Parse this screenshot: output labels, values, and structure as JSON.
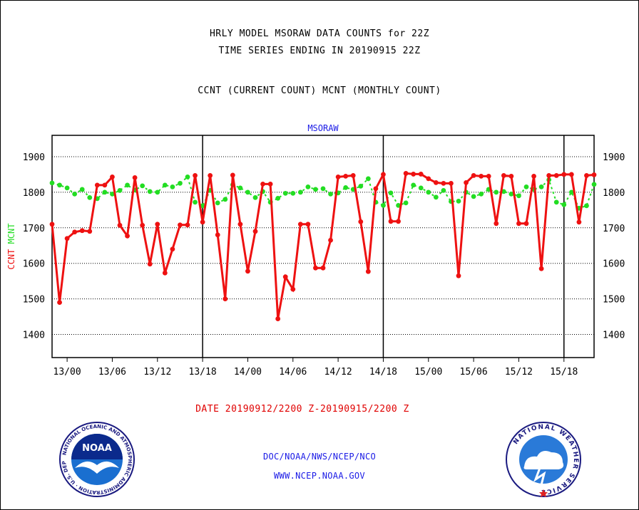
{
  "header": {
    "line1": "HRLY MODEL MSORAW DATA COUNTS for 22Z",
    "line2": "TIME SERIES ENDING IN 20190915 22Z",
    "line3": "CCNT (CURRENT COUNT) MCNT (MONTHLY COUNT)"
  },
  "footer": {
    "date_range": "DATE 20190912/2200 Z-20190915/2200 Z",
    "org": "DOC/NOAA/NWS/NCEP/NCO",
    "url": "WWW.NCEP.NOAA.GOV"
  },
  "logos": {
    "noaa_text": "NOAA",
    "noaa_ring": "NATIONAL OCEANIC AND ATMOSPHERIC ADMINISTRATION · U.S. DEPARTMENT OF COMMERCE ·",
    "nws_ring": "NATIONAL WEATHER SERVICE"
  },
  "colors": {
    "ccnt": "#ee1111",
    "mcnt": "#22dd22",
    "title": "#1a1ae6",
    "axis": "#000000"
  },
  "chart_data": {
    "type": "line",
    "title": "MSORAW",
    "ylabel_ccnt": "CCNT",
    "ylabel_mcnt": "MCNT",
    "ylim": [
      1335,
      1960
    ],
    "yticks": [
      1400,
      1500,
      1600,
      1700,
      1800,
      1900
    ],
    "xlabels": [
      "13/00",
      "13/06",
      "13/12",
      "13/18",
      "14/00",
      "14/06",
      "14/12",
      "14/18",
      "15/00",
      "15/06",
      "15/12",
      "15/18"
    ],
    "x_start": "12/22Z",
    "x_end": "15/22Z",
    "day_boundaries": [
      "13/18",
      "14/18",
      "15/18"
    ],
    "grid": true,
    "series": [
      {
        "name": "CCNT",
        "values": [
          1710,
          1490,
          1670,
          1688,
          1692,
          1690,
          1820,
          1820,
          1843,
          1707,
          1677,
          1841,
          1707,
          1598,
          1710,
          1573,
          1640,
          1708,
          1708,
          1847,
          1716,
          1847,
          1680,
          1500,
          1848,
          1710,
          1578,
          1690,
          1823,
          1823,
          1444,
          1562,
          1527,
          1710,
          1710,
          1587,
          1587,
          1665,
          1843,
          1845,
          1847,
          1717,
          1577,
          1810,
          1850,
          1718,
          1718,
          1853,
          1851,
          1851,
          1838,
          1827,
          1825,
          1825,
          1565,
          1827,
          1847,
          1845,
          1845,
          1712,
          1847,
          1845,
          1712,
          1712,
          1845,
          1585,
          1847,
          1847,
          1850,
          1850,
          1716,
          1847,
          1849
        ]
      },
      {
        "name": "MCNT",
        "values": [
          1826,
          1820,
          1812,
          1795,
          1808,
          1785,
          1782,
          1800,
          1795,
          1805,
          1820,
          1806,
          1818,
          1802,
          1800,
          1820,
          1815,
          1825,
          1843,
          1772,
          1762,
          1805,
          1770,
          1780,
          1821,
          1812,
          1800,
          1785,
          1802,
          1772,
          1783,
          1797,
          1797,
          1800,
          1815,
          1808,
          1810,
          1795,
          1798,
          1813,
          1808,
          1817,
          1838,
          1772,
          1763,
          1798,
          1763,
          1770,
          1820,
          1812,
          1800,
          1786,
          1805,
          1774,
          1775,
          1800,
          1788,
          1795,
          1808,
          1800,
          1802,
          1795,
          1790,
          1815,
          1808,
          1815,
          1835,
          1772,
          1765,
          1800,
          1755,
          1762,
          1822
        ]
      }
    ]
  }
}
